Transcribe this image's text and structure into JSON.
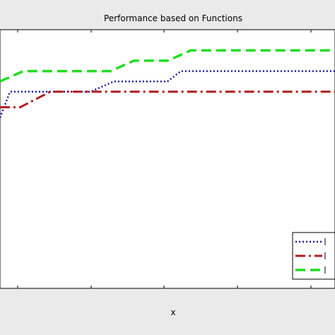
{
  "chart_data": {
    "type": "line",
    "title": "Performance based on Functions",
    "xlabel": "x",
    "ylabel": "",
    "xlim": [
      0,
      1
    ],
    "ylim": [
      0,
      1
    ],
    "grid": false,
    "legend_position": "lower-right",
    "series": [
      {
        "color": "#1a1aa0",
        "line_style": "dotted",
        "x": [
          0.0,
          0.03,
          0.08,
          0.2,
          0.27,
          0.34,
          0.5,
          0.54,
          0.6,
          1.0
        ],
        "y": [
          0.66,
          0.76,
          0.76,
          0.76,
          0.76,
          0.8,
          0.8,
          0.84,
          0.84,
          0.84
        ]
      },
      {
        "color": "#b31b1b",
        "line_style": "dash-dot",
        "x": [
          0.0,
          0.06,
          0.15,
          0.3,
          0.6,
          1.0
        ],
        "y": [
          0.7,
          0.7,
          0.76,
          0.76,
          0.76,
          0.76
        ]
      },
      {
        "color": "#22dd22",
        "line_style": "dashed",
        "x": [
          0.0,
          0.07,
          0.33,
          0.4,
          0.5,
          0.57,
          1.0
        ],
        "y": [
          0.8,
          0.84,
          0.84,
          0.88,
          0.88,
          0.92,
          0.92
        ]
      }
    ]
  }
}
